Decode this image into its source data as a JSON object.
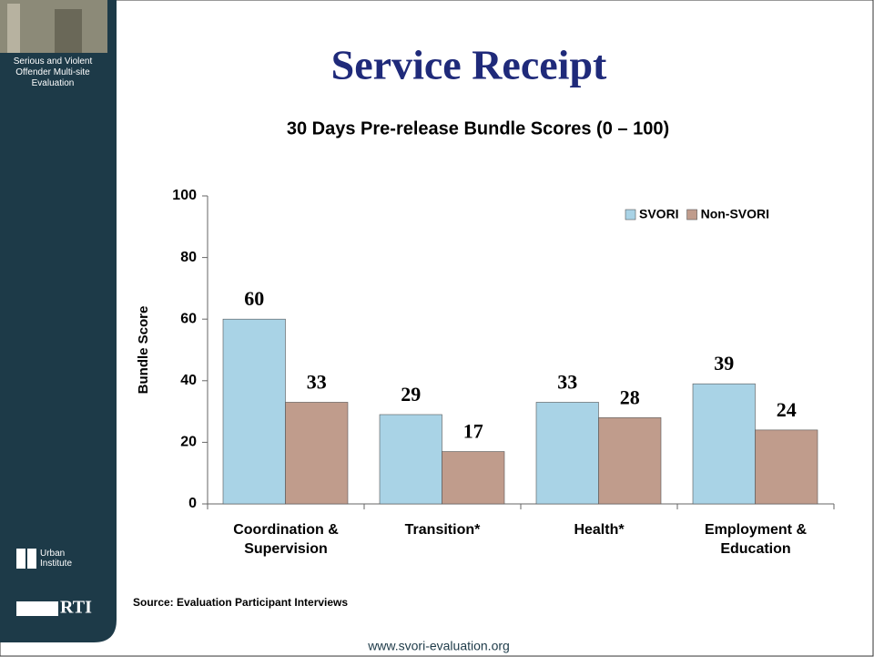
{
  "sidebar": {
    "project": "Serious and Violent Offender Multi-site Evaluation",
    "partner": "Urban Institute",
    "logo": "RTI"
  },
  "chart_data": {
    "type": "bar",
    "title": "Service Receipt",
    "subtitle": "30 Days Pre-release Bundle Scores (0 – 100)",
    "y_label": "Bundle Score",
    "categories": [
      "Coordination & Supervision",
      "Transition*",
      "Health*",
      "Employment & Education"
    ],
    "series": [
      {
        "name": "SVORI",
        "color": "#a9d3e6",
        "values": [
          60,
          29,
          33,
          39
        ]
      },
      {
        "name": "Non-SVORI",
        "color": "#c09c8c",
        "values": [
          33,
          17,
          28,
          24
        ]
      }
    ],
    "ylim": [
      0,
      100
    ],
    "yticks": [
      0,
      20,
      40,
      60,
      80,
      100
    ],
    "legend": "top-right"
  },
  "source": "Source: Evaluation Participant Interviews",
  "footer": "www.svori-evaluation.org"
}
